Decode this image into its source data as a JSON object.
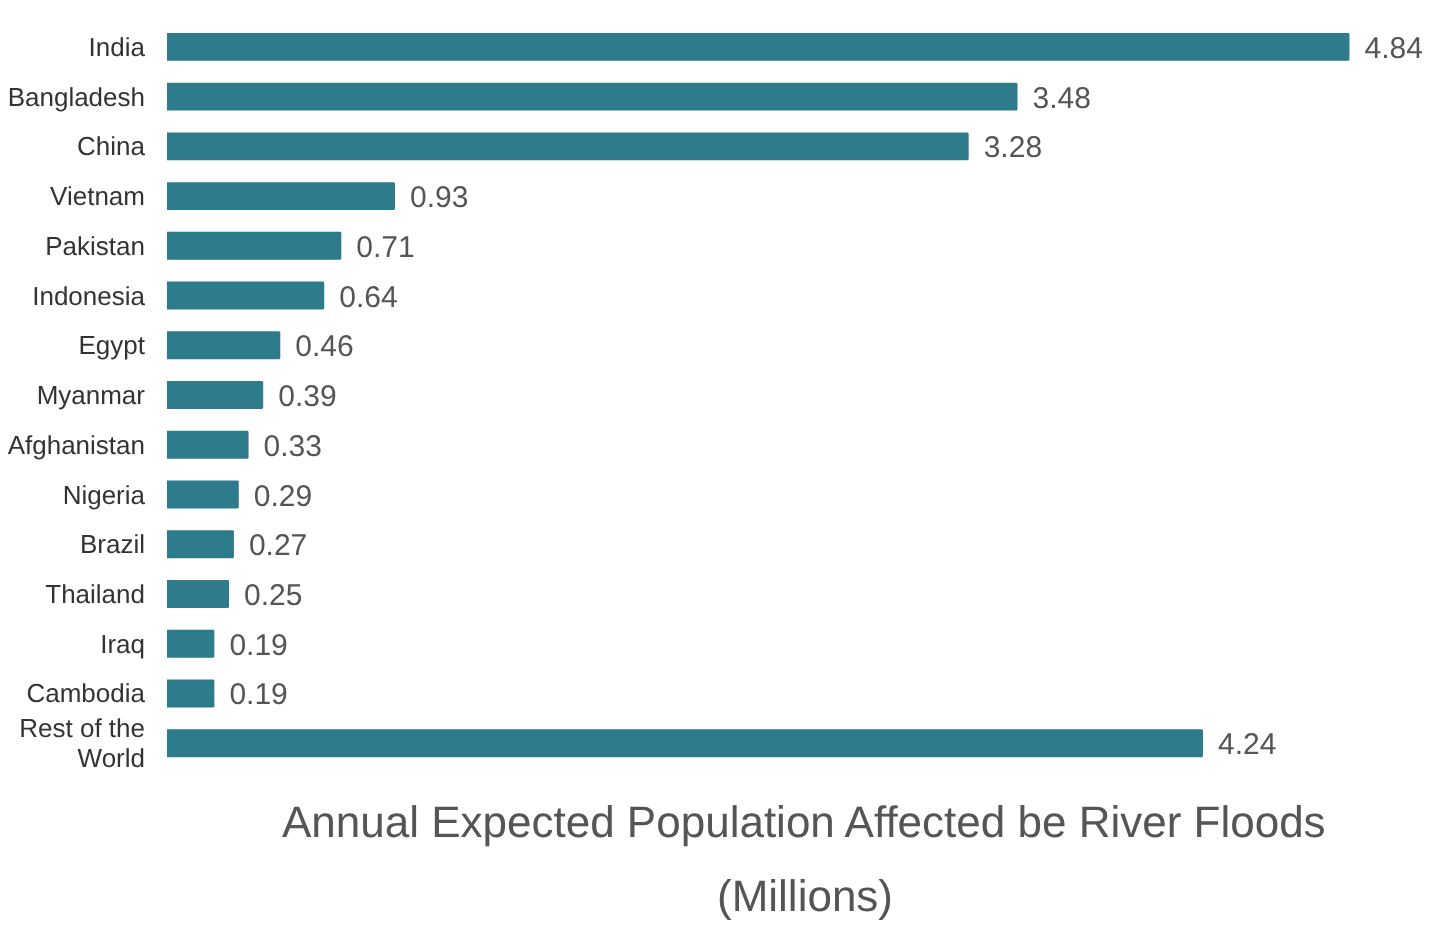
{
  "chart_data": {
    "type": "bar",
    "orientation": "horizontal",
    "title": "Annual Expected Population Affected be River Floods (Millions)",
    "categories": [
      "India",
      "Bangladesh",
      "China",
      "Vietnam",
      "Pakistan",
      "Indonesia",
      "Egypt",
      "Myanmar",
      "Afghanistan",
      "Nigeria",
      "Brazil",
      "Thailand",
      "Iraq",
      "Cambodia",
      "Rest of the World"
    ],
    "values": [
      4.84,
      3.48,
      3.28,
      0.93,
      0.71,
      0.64,
      0.46,
      0.39,
      0.33,
      0.29,
      0.27,
      0.25,
      0.19,
      0.19,
      4.24
    ],
    "color": "#2e7b8c",
    "data_labels": true,
    "grid": false
  }
}
